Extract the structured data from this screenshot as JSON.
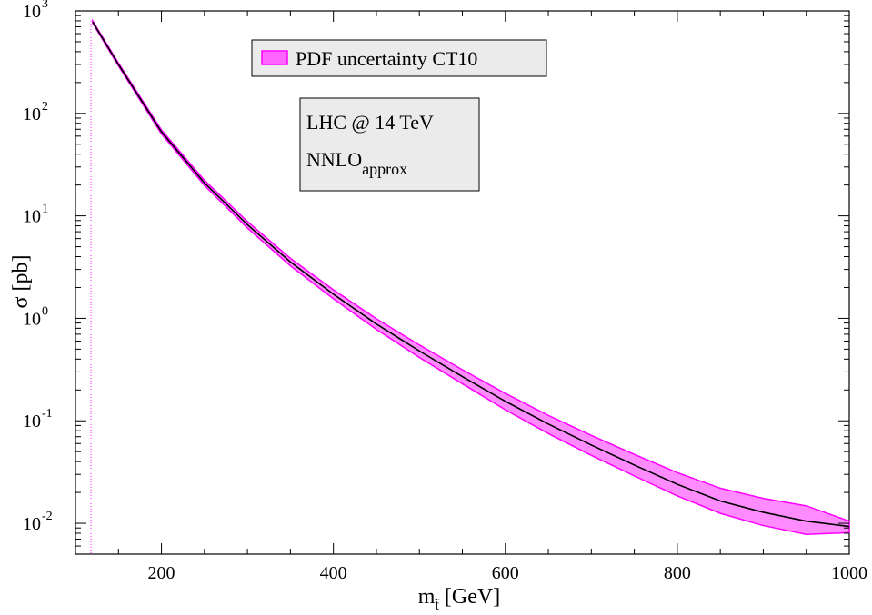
{
  "chart_data": {
    "type": "line",
    "title": "",
    "xlabel": "m",
    "xlabel_subscript": "t̃",
    "xlabel_unit": "[GeV]",
    "ylabel": "σ [pb]",
    "yscale": "log",
    "xlim": [
      100,
      1000
    ],
    "ylim": [
      0.005,
      1000
    ],
    "x_ticks": [
      200,
      400,
      600,
      800,
      1000
    ],
    "y_ticks": [
      {
        "value": 0.01,
        "base": "10",
        "exp": "-2"
      },
      {
        "value": 0.1,
        "base": "10",
        "exp": "-1"
      },
      {
        "value": 1,
        "base": "10",
        "exp": "0"
      },
      {
        "value": 10,
        "base": "10",
        "exp": "1"
      },
      {
        "value": 100,
        "base": "10",
        "exp": "2"
      },
      {
        "value": 1000,
        "base": "10",
        "exp": "3"
      }
    ],
    "legend": {
      "label": "PDF uncertainty CT10",
      "position": "top-center"
    },
    "annotation": {
      "line1": "LHC @ 14 TeV",
      "line2_main": "NNLO",
      "line2_sub": "approx"
    },
    "series": [
      {
        "name": "central",
        "color": "#000000",
        "x": [
          120,
          150,
          200,
          250,
          300,
          350,
          400,
          450,
          500,
          550,
          600,
          650,
          700,
          750,
          800,
          850,
          900,
          950,
          1000
        ],
        "y": [
          780,
          300,
          66,
          21,
          8.2,
          3.55,
          1.72,
          0.88,
          0.48,
          0.27,
          0.155,
          0.093,
          0.058,
          0.037,
          0.024,
          0.0165,
          0.0128,
          0.0105,
          0.0093
        ]
      },
      {
        "name": "PDF uncertainty CT10",
        "type": "band",
        "color": "#ff00ff",
        "fill": "#ff66ff",
        "x": [
          120,
          150,
          200,
          250,
          300,
          350,
          400,
          450,
          500,
          550,
          600,
          650,
          700,
          750,
          800,
          850,
          900,
          950,
          1000
        ],
        "upper": [
          800,
          310,
          69,
          22.3,
          8.8,
          3.85,
          1.9,
          0.99,
          0.55,
          0.315,
          0.185,
          0.113,
          0.072,
          0.047,
          0.0312,
          0.022,
          0.0175,
          0.0148,
          0.0105
        ],
        "lower": [
          760,
          290,
          63,
          19.8,
          7.6,
          3.25,
          1.55,
          0.78,
          0.415,
          0.23,
          0.128,
          0.075,
          0.046,
          0.029,
          0.0185,
          0.0125,
          0.0095,
          0.0078,
          0.0081
        ]
      }
    ],
    "vertical_line": {
      "x": 118,
      "color": "#ff00ff",
      "style": "dotted"
    }
  }
}
